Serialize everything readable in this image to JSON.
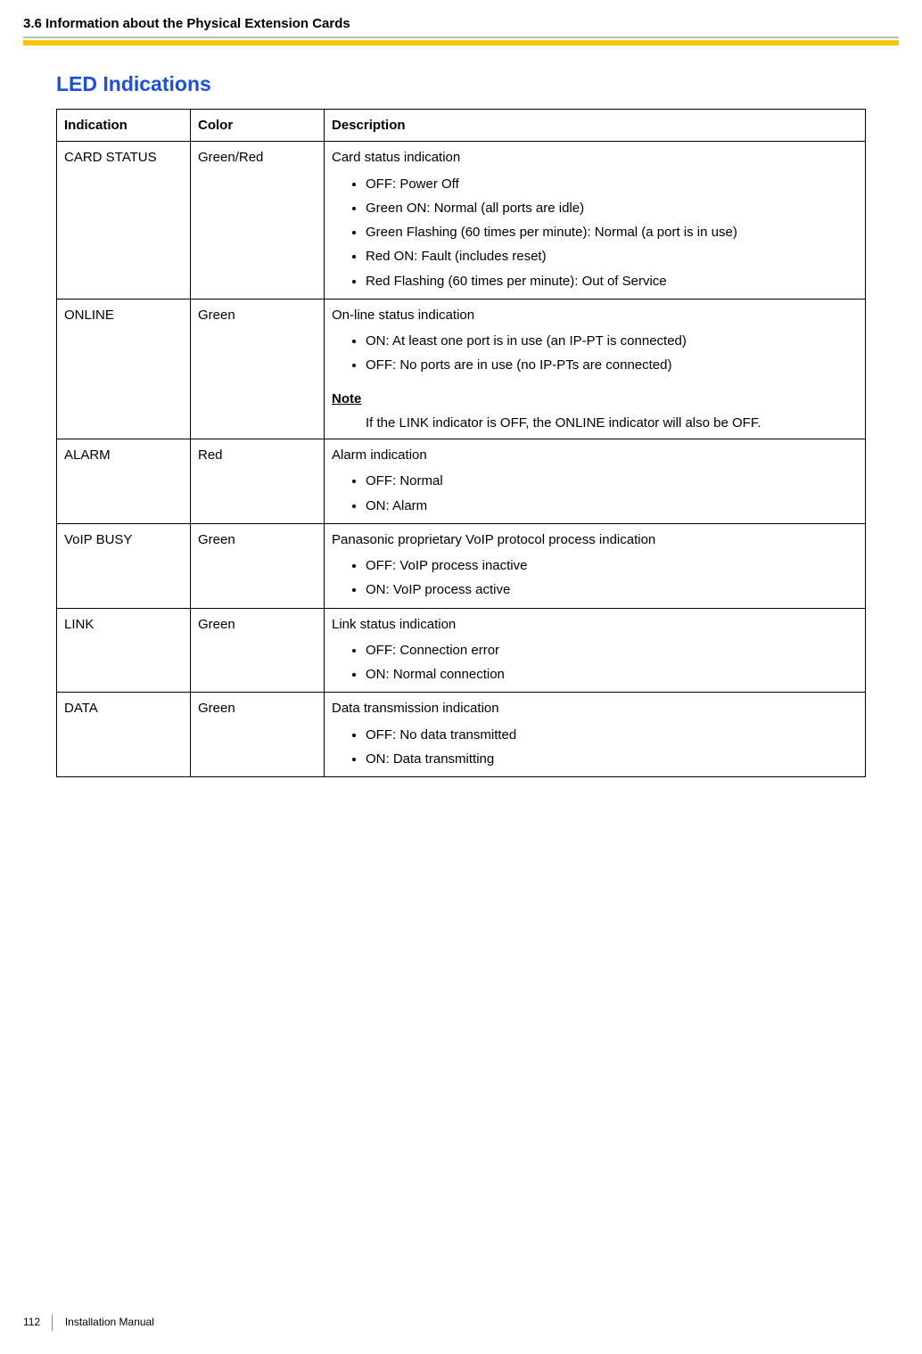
{
  "header": {
    "section": "3.6 Information about the Physical Extension Cards",
    "line_grey_color": "#bbbbbb",
    "line_yellow_color": "#f7c600"
  },
  "title": "LED Indications",
  "title_color": "#1d4fd7",
  "table": {
    "columns": [
      "Indication",
      "Color",
      "Description"
    ],
    "rows": [
      {
        "indication": "CARD STATUS",
        "color": "Green/Red",
        "desc_lead": "Card status indication",
        "bullets": [
          "OFF: Power Off",
          "Green ON: Normal (all ports are idle)",
          "Green Flashing (60 times per minute): Normal (a port is in use)",
          "Red ON: Fault (includes reset)",
          "Red Flashing (60 times per minute): Out of Service"
        ]
      },
      {
        "indication": "ONLINE",
        "color": "Green",
        "desc_lead": "On-line status indication",
        "bullets": [
          "ON: At least one port is in use (an IP-PT is connected)",
          "OFF: No ports are in use (no IP-PTs are connected)"
        ],
        "note_label": "Note",
        "note_body": "If the LINK indicator is OFF, the ONLINE indicator will also be OFF."
      },
      {
        "indication": "ALARM",
        "color": "Red",
        "desc_lead": "Alarm indication",
        "bullets": [
          "OFF: Normal",
          "ON: Alarm"
        ]
      },
      {
        "indication": "VoIP BUSY",
        "color": "Green",
        "desc_lead": "Panasonic proprietary VoIP protocol process indication",
        "bullets": [
          "OFF: VoIP process inactive",
          "ON: VoIP process active"
        ]
      },
      {
        "indication": "LINK",
        "color": "Green",
        "desc_lead": "Link status indication",
        "bullets": [
          "OFF: Connection error",
          "ON: Normal connection"
        ]
      },
      {
        "indication": "DATA",
        "color": "Green",
        "desc_lead": "Data transmission indication",
        "bullets": [
          "OFF: No data transmitted",
          "ON: Data transmitting"
        ]
      }
    ]
  },
  "footer": {
    "page_number": "112",
    "doc_title": "Installation Manual"
  }
}
